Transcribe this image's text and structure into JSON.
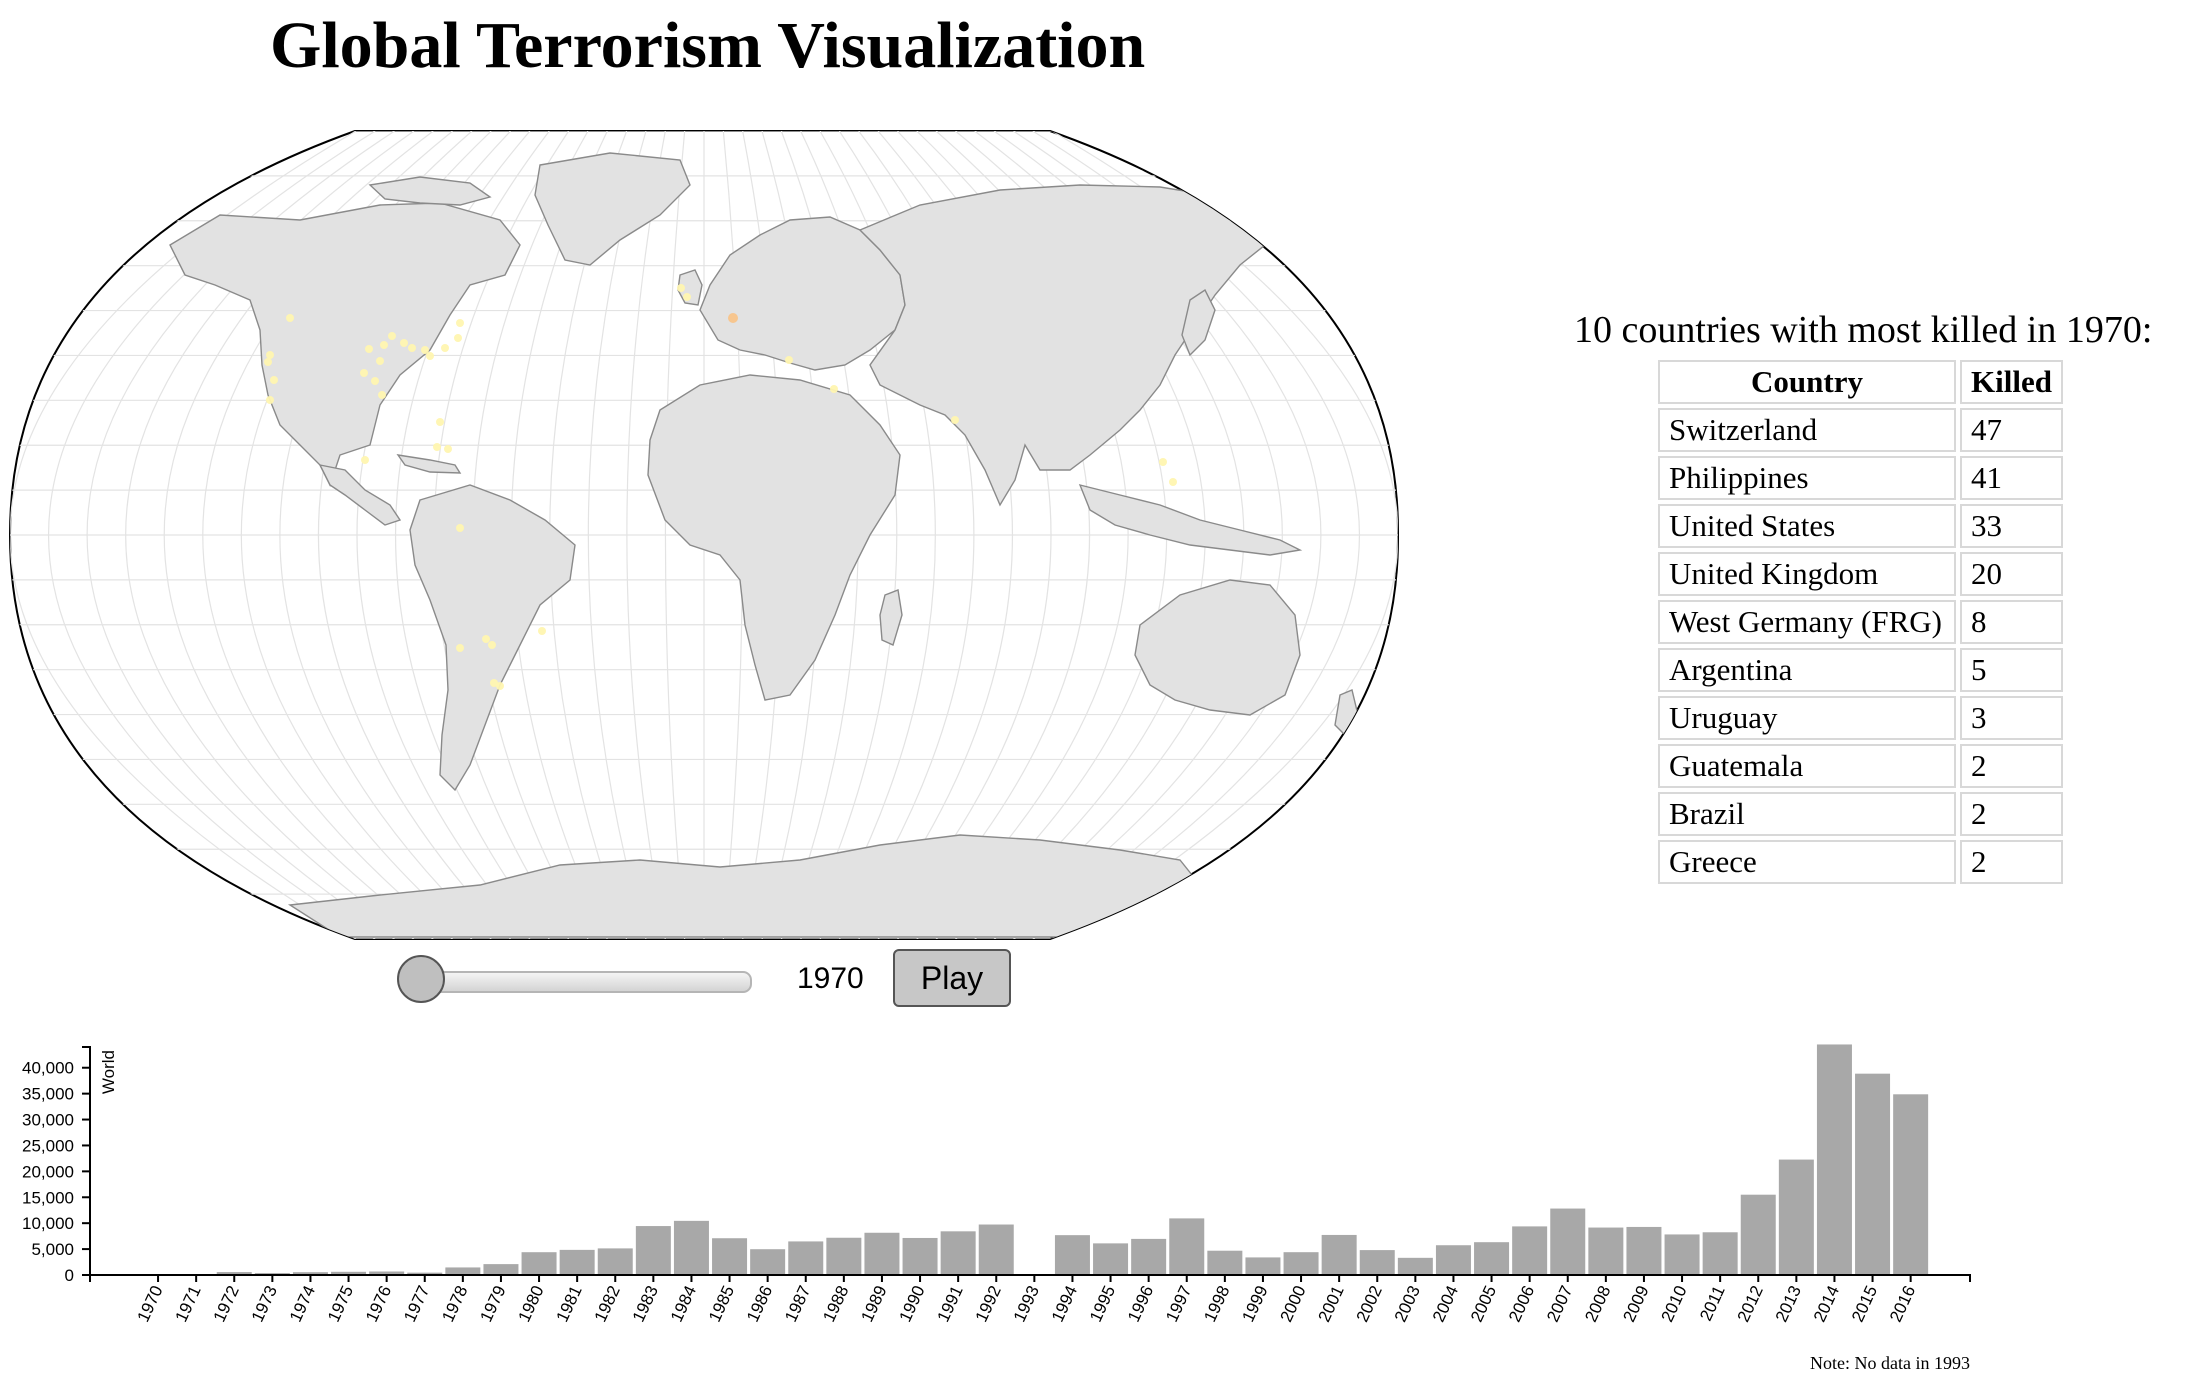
{
  "page": {
    "title": "Global Terrorism Visualization"
  },
  "table": {
    "caption": "10 countries with most killed in 1970:",
    "headers": [
      "Country",
      "Killed"
    ],
    "rows": [
      {
        "country": "Switzerland",
        "killed": "47"
      },
      {
        "country": "Philippines",
        "killed": "41"
      },
      {
        "country": "United States",
        "killed": "33"
      },
      {
        "country": "United Kingdom",
        "killed": "20"
      },
      {
        "country": "West Germany (FRG)",
        "killed": "8"
      },
      {
        "country": "Argentina",
        "killed": "5"
      },
      {
        "country": "Uruguay",
        "killed": "3"
      },
      {
        "country": "Guatemala",
        "killed": "2"
      },
      {
        "country": "Brazil",
        "killed": "2"
      },
      {
        "country": "Greece",
        "killed": "2"
      }
    ]
  },
  "controls": {
    "year": "1970",
    "play_label": "Play",
    "slider_fraction": 0
  },
  "colors": {
    "bar": "#a8a8a8",
    "land": "#e2e2e2",
    "dot": "#fff5b0",
    "dot_hot": "#f8c48a"
  },
  "chart_data": {
    "type": "bar",
    "ylabel": "World",
    "ylim": [
      0,
      44000
    ],
    "yticks": [
      0,
      5000,
      10000,
      15000,
      20000,
      25000,
      30000,
      35000,
      40000
    ],
    "ytick_labels": [
      "0",
      "5,000",
      "10,000",
      "15,000",
      "20,000",
      "25,000",
      "30,000",
      "35,000",
      "40,000"
    ],
    "categories": [
      "1970",
      "1971",
      "1972",
      "1973",
      "1974",
      "1975",
      "1976",
      "1977",
      "1978",
      "1979",
      "1980",
      "1981",
      "1982",
      "1983",
      "1984",
      "1985",
      "1986",
      "1987",
      "1988",
      "1989",
      "1990",
      "1991",
      "1992",
      "1993",
      "1994",
      "1995",
      "1996",
      "1997",
      "1998",
      "1999",
      "2000",
      "2001",
      "2002",
      "2003",
      "2004",
      "2005",
      "2006",
      "2007",
      "2008",
      "2009",
      "2010",
      "2011",
      "2012",
      "2013",
      "2014",
      "2015",
      "2016"
    ],
    "values": [
      174,
      173,
      566,
      370,
      542,
      617,
      674,
      456,
      1459,
      2100,
      4400,
      4850,
      5136,
      9444,
      10450,
      7094,
      4976,
      6482,
      7189,
      8152,
      7148,
      8429,
      9742,
      0,
      7690,
      6103,
      6966,
      10924,
      4688,
      3393,
      4403,
      7729,
      4805,
      3315,
      5743,
      6331,
      9380,
      12824,
      9157,
      9273,
      7827,
      8246,
      15497,
      22273,
      44490,
      38853,
      34871
    ],
    "note": "Note: No data in 1993"
  }
}
